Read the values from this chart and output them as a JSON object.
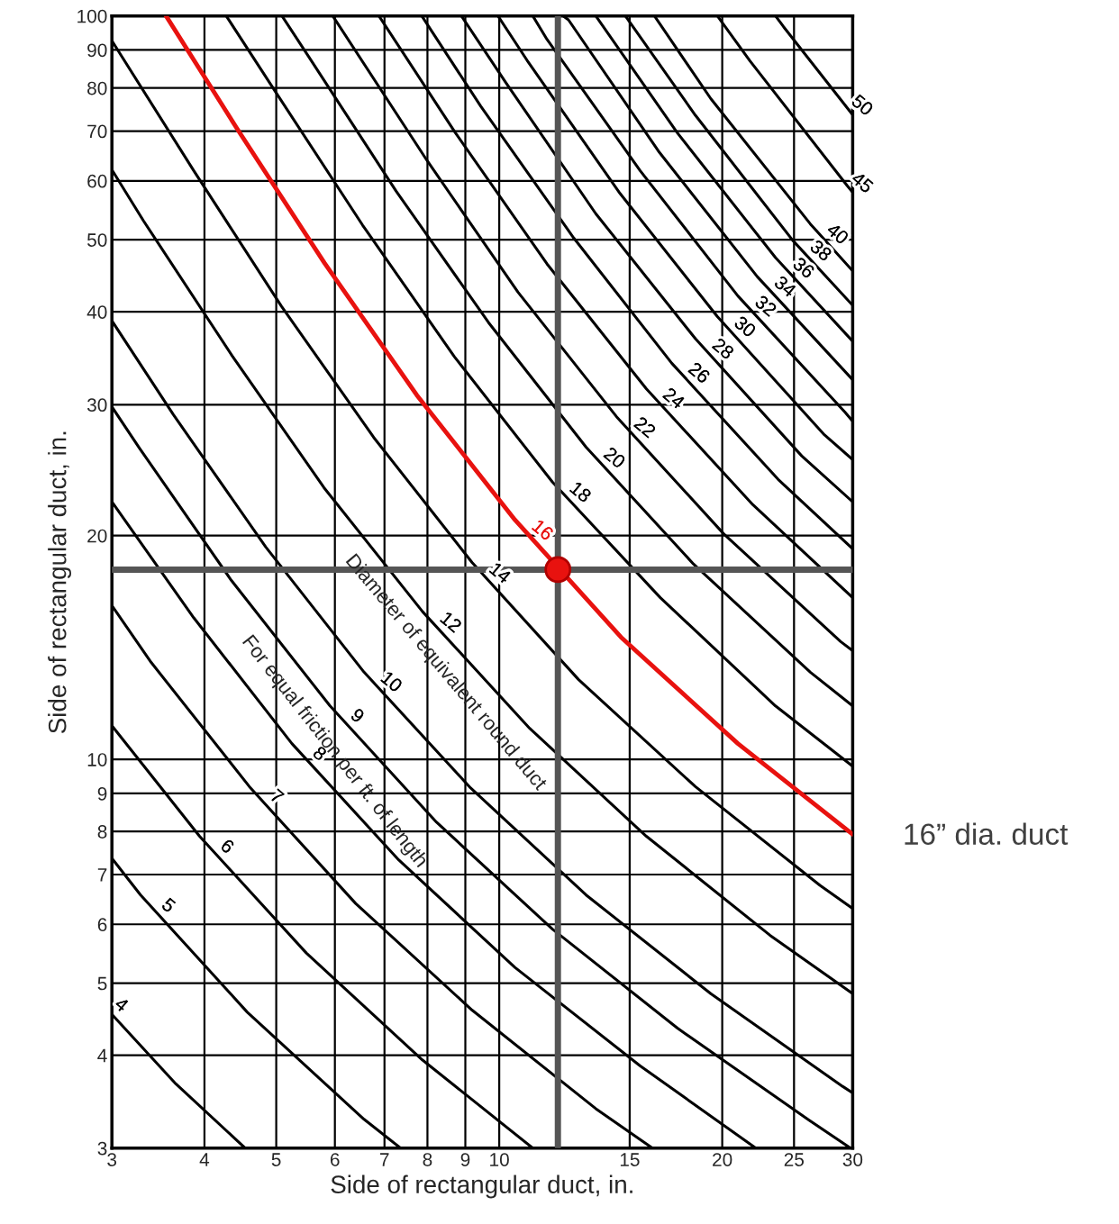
{
  "chart_data": {
    "type": "line",
    "xlabel": "Side of rectangular duct, in.",
    "ylabel": "Side of rectangular duct, in.",
    "log": "xy",
    "grid": true,
    "legend": false,
    "marker": "none",
    "line_style": "solid",
    "xlim": [
      3,
      30
    ],
    "ylim": [
      3,
      100
    ],
    "xticks": [
      3,
      4,
      5,
      6,
      7,
      8,
      9,
      10,
      15,
      20,
      25,
      30
    ],
    "yticks": [
      3,
      4,
      5,
      6,
      7,
      8,
      9,
      10,
      20,
      30,
      40,
      50,
      60,
      70,
      80,
      90,
      100
    ],
    "series": [
      {
        "name": "4",
        "color": "#000000",
        "x": [
          3,
          3.66,
          4.54
        ],
        "values": [
          4.54,
          3.66,
          3
        ]
      },
      {
        "name": "5",
        "color": "#000000",
        "x": [
          3,
          3.28,
          4.57,
          6.57,
          7.36
        ],
        "values": [
          7.36,
          6.57,
          4.57,
          3.28,
          3
        ]
      },
      {
        "name": "6",
        "color": "#000000",
        "x": [
          3,
          3.94,
          5.49,
          7.88,
          11.1
        ],
        "values": [
          11.1,
          7.88,
          5.49,
          3.94,
          3
        ]
      },
      {
        "name": "7",
        "color": "#000000",
        "x": [
          3,
          3.39,
          4.6,
          6.4,
          9.19,
          13.5,
          16.1
        ],
        "values": [
          16.1,
          13.5,
          9.19,
          6.4,
          4.6,
          3.39,
          3
        ]
      },
      {
        "name": "8",
        "color": "#000000",
        "x": [
          3,
          3.87,
          5.25,
          7.32,
          10.5,
          15.5,
          22.2
        ],
        "values": [
          22.2,
          15.5,
          10.5,
          7.32,
          5.25,
          3.87,
          3
        ]
      },
      {
        "name": "9",
        "color": "#000000",
        "x": [
          3,
          3.27,
          4.35,
          5.91,
          8.23,
          11.8,
          17.4,
          26.2,
          29.8
        ],
        "values": [
          29.8,
          26.2,
          17.4,
          11.8,
          8.23,
          5.91,
          4.35,
          3.27,
          3
        ]
      },
      {
        "name": "10",
        "color": "#000000",
        "x": [
          3,
          3.63,
          4.84,
          6.57,
          9.15,
          13.1,
          19.3,
          29.1,
          30
        ],
        "values": [
          38.9,
          29.1,
          19.3,
          13.1,
          9.15,
          6.57,
          4.84,
          3.63,
          3.56
        ]
      },
      {
        "name": "12",
        "color": "#000000",
        "x": [
          3,
          3.31,
          4.36,
          5.8,
          7.88,
          11.0,
          15.8,
          23.2,
          30
        ],
        "values": [
          62.1,
          53.0,
          34.9,
          23.2,
          15.8,
          11.0,
          7.88,
          5.8,
          4.84
        ]
      },
      {
        "name": "14",
        "color": "#000000",
        "x": [
          3,
          3.87,
          5.08,
          6.77,
          9.19,
          12.8,
          18.4,
          27.1,
          30
        ],
        "values": [
          92.6,
          61.9,
          40.7,
          27.1,
          18.4,
          12.8,
          9.19,
          6.77,
          6.3
        ]
      },
      {
        "name": "16",
        "color": "#e8120f",
        "x": [
          3.55,
          4.42,
          5.81,
          7.74,
          10.5,
          14.6,
          21.0,
          30
        ],
        "values": [
          100,
          70.7,
          46.5,
          30.9,
          21.0,
          14.6,
          10.5,
          7.93
        ]
      },
      {
        "name": "18",
        "color": "#000000",
        "x": [
          4.28,
          4.97,
          6.54,
          8.7,
          11.8,
          16.5,
          23.6,
          30
        ],
        "values": [
          100,
          79.5,
          52.3,
          34.8,
          23.6,
          16.5,
          11.8,
          9.79
        ]
      },
      {
        "name": "20",
        "color": "#000000",
        "x": [
          5.09,
          5.52,
          7.26,
          9.67,
          13.1,
          18.3,
          26.3,
          30
        ],
        "values": [
          100,
          88.4,
          58.1,
          38.7,
          26.3,
          18.3,
          13.1,
          11.8
        ]
      },
      {
        "name": "22",
        "color": "#000000",
        "x": [
          5.96,
          7.99,
          10.6,
          14.4,
          20.1,
          28.9,
          30
        ],
        "values": [
          100,
          63.9,
          42.5,
          28.9,
          20.1,
          14.4,
          14.0
        ]
      },
      {
        "name": "24",
        "color": "#000000",
        "x": [
          6.88,
          8.72,
          11.6,
          15.8,
          22.0,
          30
        ],
        "values": [
          100,
          69.7,
          46.4,
          31.5,
          22.0,
          16.5
        ]
      },
      {
        "name": "26",
        "color": "#000000",
        "x": [
          7.86,
          9.44,
          12.6,
          17.1,
          23.8,
          30
        ],
        "values": [
          100,
          75.6,
          50.3,
          34.1,
          23.8,
          19.2
        ]
      },
      {
        "name": "28",
        "color": "#000000",
        "x": [
          8.89,
          10.2,
          13.5,
          18.4,
          25.6,
          30
        ],
        "values": [
          100,
          81.4,
          54.2,
          36.8,
          25.6,
          22.2
        ]
      },
      {
        "name": "30",
        "color": "#000000",
        "x": [
          9.96,
          10.9,
          14.5,
          19.7,
          27.4,
          30
        ],
        "values": [
          100,
          87.2,
          58.0,
          39.4,
          27.4,
          25.3
        ]
      },
      {
        "name": "32",
        "color": "#000000",
        "x": [
          11.1,
          11.6,
          15.5,
          21.0,
          29.3,
          30
        ],
        "values": [
          100,
          93.0,
          61.9,
          42.0,
          29.3,
          28.5
        ]
      },
      {
        "name": "34",
        "color": "#000000",
        "x": [
          12.2,
          12.4,
          16.4,
          22.3,
          30
        ],
        "values": [
          100,
          98.8,
          65.8,
          44.6,
          32.4
        ]
      },
      {
        "name": "36",
        "color": "#000000",
        "x": [
          13.5,
          17.4,
          23.6,
          30
        ],
        "values": [
          100,
          69.6,
          47.3,
          36.5
        ]
      },
      {
        "name": "38",
        "color": "#000000",
        "x": [
          14.8,
          18.4,
          24.9,
          30
        ],
        "values": [
          100,
          73.5,
          49.9,
          40.8
        ]
      },
      {
        "name": "40",
        "color": "#000000",
        "x": [
          16.2,
          19.3,
          26.3,
          30
        ],
        "values": [
          100,
          77.4,
          52.5,
          45.4
        ]
      },
      {
        "name": "45",
        "color": "#000000",
        "x": [
          19.7,
          21.8,
          29.5,
          30
        ],
        "values": [
          100,
          87.0,
          59.1,
          57.9
        ]
      },
      {
        "name": "50",
        "color": "#000000",
        "x": [
          23.6,
          24.2,
          30
        ],
        "values": [
          100,
          96.7,
          73.6
        ]
      },
      {
        "type": "scatter",
        "marker": "circle",
        "color": "#e8120f",
        "x": [
          12
        ],
        "values": [
          18
        ]
      }
    ],
    "ref_lines": [
      {
        "axis": "y",
        "value": 18,
        "color": "#555555"
      },
      {
        "axis": "x",
        "value": 12,
        "color": "#555555"
      }
    ],
    "annotations": [
      "Diameter of equivalent round duct",
      "For equal friction per ft. of length",
      {
        "text": "16” dia. duct",
        "x": 30,
        "y": 7.93
      }
    ]
  }
}
